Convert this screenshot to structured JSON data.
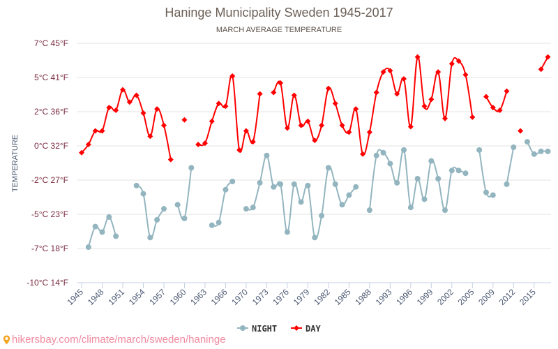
{
  "chart_data": {
    "type": "line",
    "title": "Haninge Municipality Sweden 1945-2017",
    "subtitle": "MARCH AVERAGE TEMPERATURE",
    "ylabel": "TEMPERATURE",
    "xlabel": "",
    "ylim": [
      -10,
      7.5
    ],
    "y_ticks": [
      {
        "value": -10,
        "label": "-10°C 14°F"
      },
      {
        "value": -7.5,
        "label": "-7°C 18°F"
      },
      {
        "value": -5,
        "label": "-5°C 23°F"
      },
      {
        "value": -2.5,
        "label": "-2°C 27°F"
      },
      {
        "value": 0,
        "label": "0°C 32°F"
      },
      {
        "value": 2.5,
        "label": "2°C 36°F"
      },
      {
        "value": 5,
        "label": "5°C 41°F"
      },
      {
        "value": 7.5,
        "label": "7°C 45°F"
      }
    ],
    "grid": true,
    "legend_position": "bottom",
    "categories": [
      "1945",
      "1946",
      "1947",
      "1948",
      "1949",
      "1950",
      "1951",
      "1952",
      "1953",
      "1954",
      "1955",
      "1956",
      "1957",
      "1958",
      "1959",
      "1960",
      "1961",
      "1962",
      "1963",
      "1964",
      "1965",
      "1966",
      "1967",
      "1968",
      "1970",
      "1971",
      "1972",
      "1973",
      "1974",
      "1975",
      "1976",
      "1977",
      "1978",
      "1979",
      "1980",
      "1981",
      "1982",
      "1983",
      "1984",
      "1985",
      "1986",
      "1987",
      "1988",
      "1989",
      "1990",
      "1993",
      "1994",
      "1995",
      "1996",
      "1997",
      "1998",
      "1999",
      "2000",
      "2001",
      "2002",
      "2003",
      "2004",
      "2005",
      "2006",
      "2007",
      "2009",
      "2010",
      "2011",
      "2012",
      "2013",
      "2014",
      "2015",
      "2016",
      "2017"
    ],
    "x_tick_labels": [
      "1945",
      "1948",
      "1951",
      "1954",
      "1957",
      "1960",
      "1963",
      "1966",
      "1970",
      "1973",
      "1976",
      "1979",
      "1982",
      "1985",
      "1988",
      "1993",
      "1996",
      "1999",
      "2002",
      "2005",
      "2009",
      "2012",
      "2015"
    ],
    "x_tick_every": 3,
    "series": [
      {
        "name": "NIGHT",
        "color": "#93b5bf",
        "marker": "circle",
        "values": [
          null,
          -7.4,
          -5.9,
          -6.3,
          -5.2,
          -6.6,
          null,
          null,
          -2.9,
          -3.5,
          -6.7,
          -5.4,
          -4.6,
          null,
          -4.3,
          -5.3,
          -1.6,
          null,
          null,
          -5.8,
          -5.6,
          -3.2,
          -2.6,
          null,
          -4.6,
          -4.5,
          -2.7,
          -0.7,
          -3.0,
          -2.8,
          -6.3,
          -2.8,
          -4.1,
          -2.9,
          -6.7,
          -5.1,
          -1.6,
          -2.8,
          -4.3,
          -3.6,
          -3.0,
          null,
          -4.7,
          -0.7,
          -0.5,
          -1.3,
          -2.7,
          -0.3,
          -4.5,
          -2.4,
          -3.9,
          -1.1,
          -2.4,
          -4.7,
          -1.8,
          -1.8,
          -2.0,
          null,
          -0.3,
          -3.4,
          -3.6,
          null,
          -2.8,
          -0.1,
          null,
          0.3,
          -0.6,
          -0.4,
          -0.4
        ]
      },
      {
        "name": "DAY",
        "color": "#ff0000",
        "marker": "diamond",
        "values": [
          -0.5,
          0.1,
          1.1,
          1.1,
          2.8,
          2.6,
          4.1,
          3.2,
          3.7,
          2.4,
          0.7,
          2.7,
          1.5,
          -1.0,
          null,
          1.9,
          null,
          0.1,
          0.2,
          1.8,
          3.1,
          2.9,
          5.1,
          -0.3,
          1.1,
          0.3,
          3.8,
          null,
          3.9,
          4.6,
          1.3,
          3.7,
          1.5,
          1.8,
          0.4,
          1.5,
          4.2,
          3.1,
          1.5,
          1.0,
          2.7,
          -0.6,
          1.0,
          3.9,
          5.4,
          5.5,
          3.8,
          4.9,
          1.4,
          6.5,
          2.9,
          3.4,
          5.4,
          2.0,
          6.0,
          6.2,
          5.2,
          2.1,
          null,
          3.6,
          2.8,
          2.6,
          4.0,
          null,
          1.1,
          null,
          null,
          5.6,
          6.5
        ]
      }
    ]
  },
  "footer": {
    "url_text": "hikersbay.com/climate/march/sweden/haninge",
    "icon": "map-pin-icon"
  }
}
